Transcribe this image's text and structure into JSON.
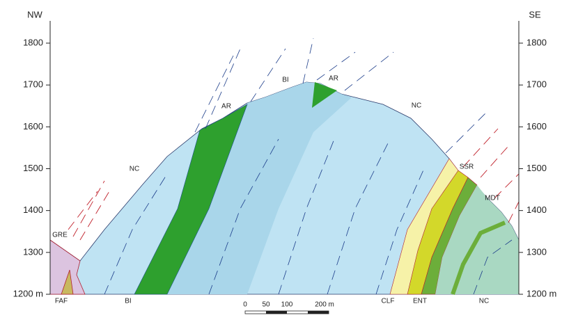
{
  "orientation": {
    "left": "NW",
    "right": "SE"
  },
  "elevation_ticks": [
    {
      "value": 1200,
      "label": "1200 m"
    },
    1300,
    1400,
    1500,
    1600,
    1700,
    1800
  ],
  "units": [
    {
      "label": "GRE"
    },
    {
      "label": "FAF"
    },
    {
      "label": "BI"
    },
    {
      "label": "NC"
    },
    {
      "label": "AR"
    },
    {
      "label": "BI"
    },
    {
      "label": "AR"
    },
    {
      "label": "NC"
    },
    {
      "label": "SSR"
    },
    {
      "label": "MDT"
    },
    {
      "label": "CLF"
    },
    {
      "label": "ENT"
    },
    {
      "label": "NC"
    }
  ],
  "scale_bar": [
    "0",
    "50",
    "100",
    "200 m"
  ]
}
